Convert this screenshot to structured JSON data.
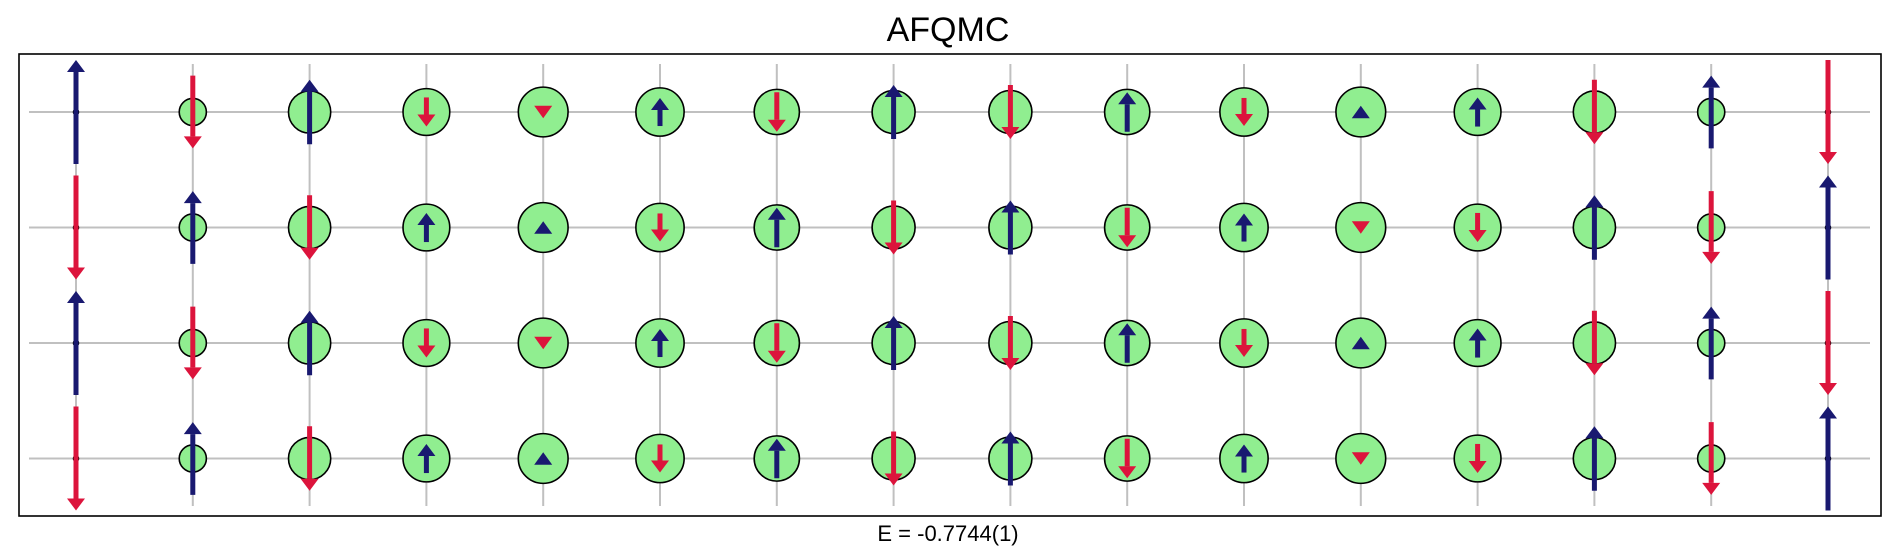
{
  "title": "AFQMC",
  "energy_label": "E = -0.7744(1)",
  "colors": {
    "spin_up": "#191970",
    "spin_down": "#dc143c",
    "charge_fill": "#90ee90",
    "grid": "#c0c0c0",
    "frame": "#000000"
  },
  "lattice": {
    "columns": 16,
    "rows": 4
  },
  "sites": [
    {
      "row": 0,
      "col": 0,
      "charge": 0.02,
      "spin": 1.0
    },
    {
      "row": 0,
      "col": 1,
      "charge": 0.36,
      "spin": -0.7
    },
    {
      "row": 0,
      "col": 2,
      "charge": 0.56,
      "spin": 0.62
    },
    {
      "row": 0,
      "col": 3,
      "charge": 0.62,
      "spin": -0.28
    },
    {
      "row": 0,
      "col": 4,
      "charge": 0.66,
      "spin": -0.12
    },
    {
      "row": 0,
      "col": 5,
      "charge": 0.64,
      "spin": 0.27
    },
    {
      "row": 0,
      "col": 6,
      "charge": 0.6,
      "spin": -0.38
    },
    {
      "row": 0,
      "col": 7,
      "charge": 0.57,
      "spin": 0.52
    },
    {
      "row": 0,
      "col": 8,
      "charge": 0.57,
      "spin": -0.52
    },
    {
      "row": 0,
      "col": 9,
      "charge": 0.6,
      "spin": 0.38
    },
    {
      "row": 0,
      "col": 10,
      "charge": 0.64,
      "spin": -0.27
    },
    {
      "row": 0,
      "col": 11,
      "charge": 0.66,
      "spin": 0.12
    },
    {
      "row": 0,
      "col": 12,
      "charge": 0.62,
      "spin": 0.28
    },
    {
      "row": 0,
      "col": 13,
      "charge": 0.56,
      "spin": -0.62
    },
    {
      "row": 0,
      "col": 14,
      "charge": 0.36,
      "spin": 0.7
    },
    {
      "row": 0,
      "col": 15,
      "charge": 0.02,
      "spin": -1.0
    },
    {
      "row": 1,
      "col": 0,
      "charge": 0.02,
      "spin": -1.0
    },
    {
      "row": 1,
      "col": 1,
      "charge": 0.36,
      "spin": 0.7
    },
    {
      "row": 1,
      "col": 2,
      "charge": 0.56,
      "spin": -0.62
    },
    {
      "row": 1,
      "col": 3,
      "charge": 0.62,
      "spin": 0.28
    },
    {
      "row": 1,
      "col": 4,
      "charge": 0.66,
      "spin": 0.12
    },
    {
      "row": 1,
      "col": 5,
      "charge": 0.64,
      "spin": -0.27
    },
    {
      "row": 1,
      "col": 6,
      "charge": 0.6,
      "spin": 0.38
    },
    {
      "row": 1,
      "col": 7,
      "charge": 0.57,
      "spin": -0.52
    },
    {
      "row": 1,
      "col": 8,
      "charge": 0.57,
      "spin": 0.52
    },
    {
      "row": 1,
      "col": 9,
      "charge": 0.6,
      "spin": -0.38
    },
    {
      "row": 1,
      "col": 10,
      "charge": 0.64,
      "spin": 0.27
    },
    {
      "row": 1,
      "col": 11,
      "charge": 0.66,
      "spin": -0.12
    },
    {
      "row": 1,
      "col": 12,
      "charge": 0.62,
      "spin": -0.28
    },
    {
      "row": 1,
      "col": 13,
      "charge": 0.56,
      "spin": 0.62
    },
    {
      "row": 1,
      "col": 14,
      "charge": 0.36,
      "spin": -0.7
    },
    {
      "row": 1,
      "col": 15,
      "charge": 0.02,
      "spin": 1.0
    },
    {
      "row": 2,
      "col": 0,
      "charge": 0.02,
      "spin": 1.0
    },
    {
      "row": 2,
      "col": 1,
      "charge": 0.36,
      "spin": -0.7
    },
    {
      "row": 2,
      "col": 2,
      "charge": 0.56,
      "spin": 0.62
    },
    {
      "row": 2,
      "col": 3,
      "charge": 0.62,
      "spin": -0.28
    },
    {
      "row": 2,
      "col": 4,
      "charge": 0.66,
      "spin": -0.12
    },
    {
      "row": 2,
      "col": 5,
      "charge": 0.64,
      "spin": 0.27
    },
    {
      "row": 2,
      "col": 6,
      "charge": 0.6,
      "spin": -0.38
    },
    {
      "row": 2,
      "col": 7,
      "charge": 0.57,
      "spin": 0.52
    },
    {
      "row": 2,
      "col": 8,
      "charge": 0.57,
      "spin": -0.52
    },
    {
      "row": 2,
      "col": 9,
      "charge": 0.6,
      "spin": 0.38
    },
    {
      "row": 2,
      "col": 10,
      "charge": 0.64,
      "spin": -0.27
    },
    {
      "row": 2,
      "col": 11,
      "charge": 0.66,
      "spin": 0.12
    },
    {
      "row": 2,
      "col": 12,
      "charge": 0.62,
      "spin": 0.28
    },
    {
      "row": 2,
      "col": 13,
      "charge": 0.56,
      "spin": -0.62
    },
    {
      "row": 2,
      "col": 14,
      "charge": 0.36,
      "spin": 0.7
    },
    {
      "row": 2,
      "col": 15,
      "charge": 0.02,
      "spin": -1.0
    },
    {
      "row": 3,
      "col": 0,
      "charge": 0.02,
      "spin": -1.0
    },
    {
      "row": 3,
      "col": 1,
      "charge": 0.36,
      "spin": 0.7
    },
    {
      "row": 3,
      "col": 2,
      "charge": 0.56,
      "spin": -0.62
    },
    {
      "row": 3,
      "col": 3,
      "charge": 0.62,
      "spin": 0.28
    },
    {
      "row": 3,
      "col": 4,
      "charge": 0.66,
      "spin": 0.12
    },
    {
      "row": 3,
      "col": 5,
      "charge": 0.64,
      "spin": -0.27
    },
    {
      "row": 3,
      "col": 6,
      "charge": 0.6,
      "spin": 0.38
    },
    {
      "row": 3,
      "col": 7,
      "charge": 0.57,
      "spin": -0.52
    },
    {
      "row": 3,
      "col": 8,
      "charge": 0.57,
      "spin": 0.52
    },
    {
      "row": 3,
      "col": 9,
      "charge": 0.6,
      "spin": -0.38
    },
    {
      "row": 3,
      "col": 10,
      "charge": 0.64,
      "spin": 0.27
    },
    {
      "row": 3,
      "col": 11,
      "charge": 0.66,
      "spin": -0.12
    },
    {
      "row": 3,
      "col": 12,
      "charge": 0.62,
      "spin": -0.28
    },
    {
      "row": 3,
      "col": 13,
      "charge": 0.56,
      "spin": 0.62
    },
    {
      "row": 3,
      "col": 14,
      "charge": 0.36,
      "spin": -0.7
    },
    {
      "row": 3,
      "col": 15,
      "charge": 0.02,
      "spin": 1.0
    }
  ]
}
